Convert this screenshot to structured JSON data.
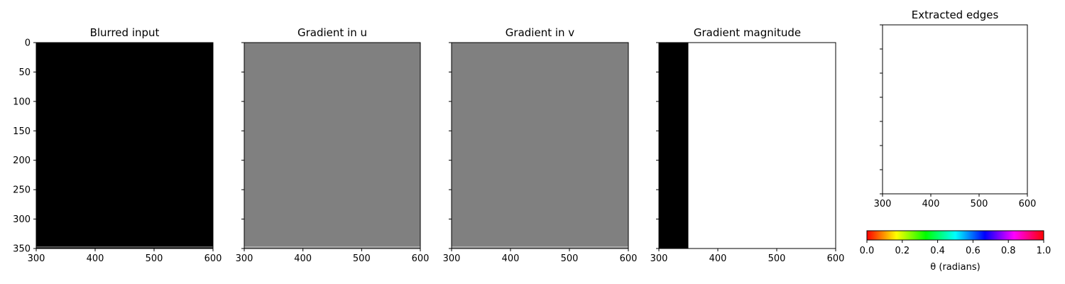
{
  "chart_data": [
    {
      "type": "heatmap",
      "title": "Blurred input",
      "xlim": [
        300,
        600
      ],
      "ylim": [
        350,
        0
      ],
      "xticks": [
        "300",
        "400",
        "500",
        "600"
      ],
      "yticks": [
        "0",
        "50",
        "100",
        "150",
        "200",
        "250",
        "300",
        "350"
      ],
      "show_ytick_labels": true,
      "regions": [
        {
          "x": [
            300,
            600
          ],
          "y": [
            0,
            347
          ],
          "color": "#000000"
        },
        {
          "x": [
            300,
            600
          ],
          "y": [
            347,
            348
          ],
          "color": "#bdbdbd"
        },
        {
          "x": [
            300,
            600
          ],
          "y": [
            348,
            350
          ],
          "color": "#000000"
        }
      ]
    },
    {
      "type": "heatmap",
      "title": "Gradient in u",
      "xlim": [
        300,
        600
      ],
      "ylim": [
        350,
        0
      ],
      "xticks": [
        "300",
        "400",
        "500",
        "600"
      ],
      "yticks": [
        "0",
        "50",
        "100",
        "150",
        "200",
        "250",
        "300",
        "350"
      ],
      "show_ytick_labels": false,
      "regions": [
        {
          "x": [
            300,
            600
          ],
          "y": [
            0,
            347
          ],
          "color": "#808080"
        },
        {
          "x": [
            300,
            600
          ],
          "y": [
            347,
            348
          ],
          "color": "#e0e0e0"
        },
        {
          "x": [
            300,
            600
          ],
          "y": [
            348,
            350
          ],
          "color": "#808080"
        }
      ]
    },
    {
      "type": "heatmap",
      "title": "Gradient in v",
      "xlim": [
        300,
        600
      ],
      "ylim": [
        350,
        0
      ],
      "xticks": [
        "300",
        "400",
        "500",
        "600"
      ],
      "yticks": [
        "0",
        "50",
        "100",
        "150",
        "200",
        "250",
        "300",
        "350"
      ],
      "show_ytick_labels": false,
      "regions": [
        {
          "x": [
            300,
            600
          ],
          "y": [
            0,
            347
          ],
          "color": "#808080"
        },
        {
          "x": [
            300,
            600
          ],
          "y": [
            347,
            348
          ],
          "color": "#e0e0e0"
        },
        {
          "x": [
            300,
            600
          ],
          "y": [
            348,
            350
          ],
          "color": "#808080"
        }
      ]
    },
    {
      "type": "heatmap",
      "title": "Gradient magnitude",
      "xlim": [
        300,
        600
      ],
      "ylim": [
        350,
        0
      ],
      "xticks": [
        "300",
        "400",
        "500",
        "600"
      ],
      "yticks": [
        "0",
        "50",
        "100",
        "150",
        "200",
        "250",
        "300",
        "350"
      ],
      "show_ytick_labels": false,
      "regions": [
        {
          "x": [
            300,
            350
          ],
          "y": [
            0,
            350
          ],
          "color": "#000000"
        },
        {
          "x": [
            350,
            600
          ],
          "y": [
            0,
            350
          ],
          "color": "#ffffff"
        }
      ]
    },
    {
      "type": "scatter",
      "title": "Extracted edges",
      "xlim": [
        300,
        600
      ],
      "ylim": [
        350,
        0
      ],
      "xticks": [
        "300",
        "400",
        "500",
        "600"
      ],
      "yticks": [
        "0",
        "50",
        "100",
        "150",
        "200",
        "250",
        "300",
        "350"
      ],
      "show_ytick_labels": false,
      "points": [],
      "colorbar": {
        "range": [
          0.0,
          1.0
        ],
        "ticks": [
          "0.0",
          "0.2",
          "0.4",
          "0.6",
          "0.8",
          "1.0"
        ],
        "label": "θ (radians)",
        "colormap": "hsv"
      }
    }
  ]
}
